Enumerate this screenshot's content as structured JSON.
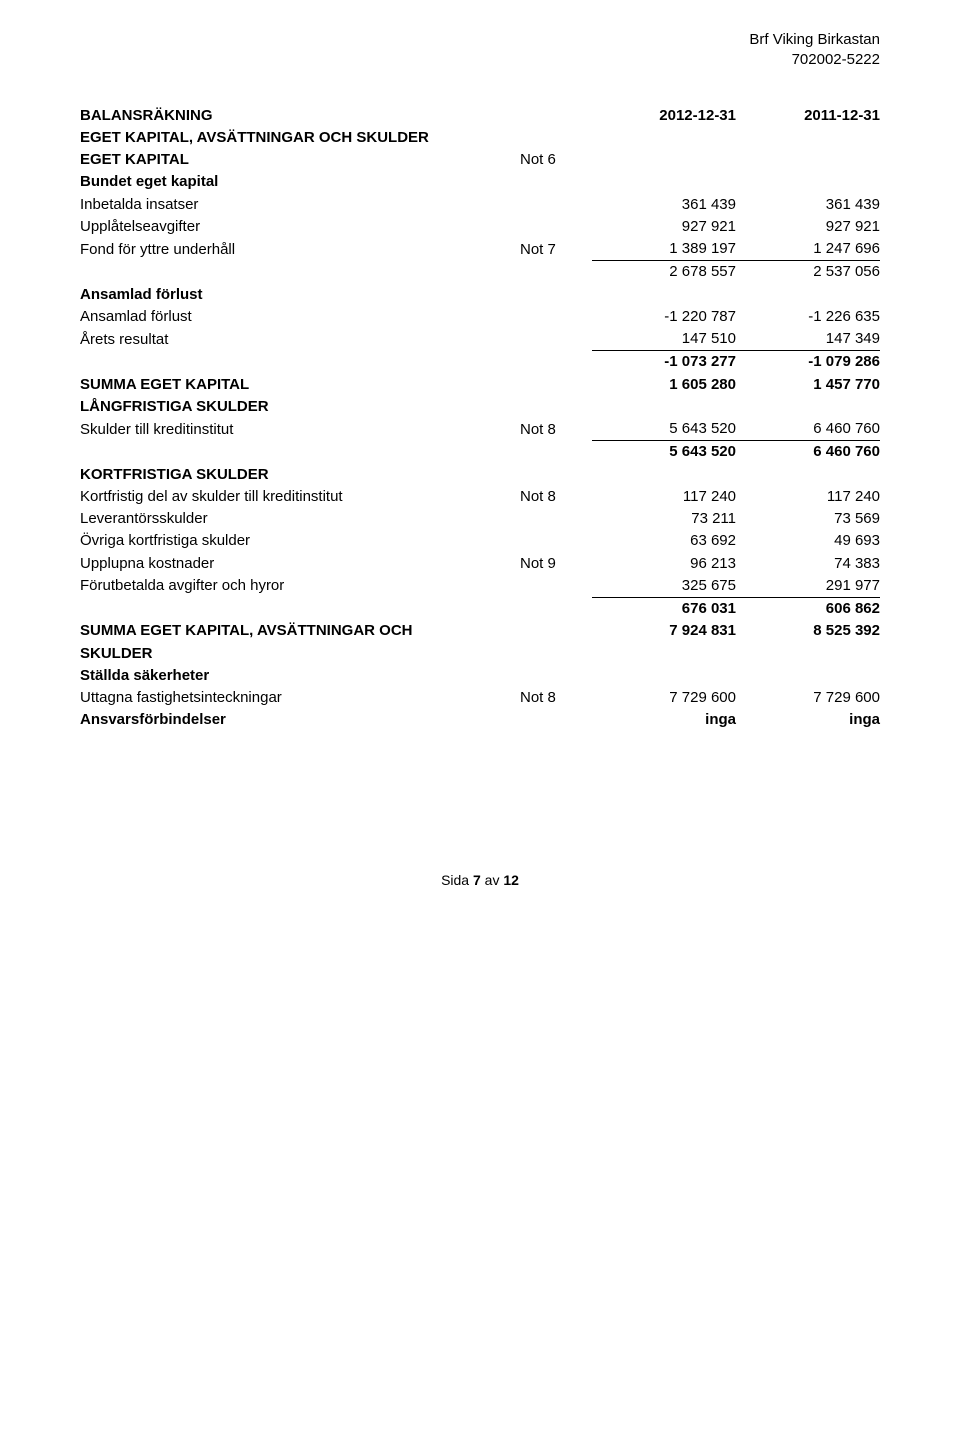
{
  "header": {
    "company": "Brf Viking Birkastan",
    "orgnr": "702002-5222"
  },
  "title": "BALANSRÄKNING",
  "col1_header": "2012-12-31",
  "col2_header": "2011-12-31",
  "sections": {
    "main_heading": "EGET KAPITAL, AVSÄTTNINGAR OCH SKULDER",
    "eget_kapital": {
      "heading": "EGET KAPITAL",
      "note": "Not 6",
      "sub1": "Bundet eget kapital",
      "rows": [
        {
          "label": "Inbetalda insatser",
          "note": "",
          "c1": "361 439",
          "c2": "361 439"
        },
        {
          "label": "Upplåtelseavgifter",
          "note": "",
          "c1": "927 921",
          "c2": "927 921"
        },
        {
          "label": "Fond för yttre underhåll",
          "note": "Not 7",
          "c1": "1 389 197",
          "c2": "1 247 696",
          "u": true
        }
      ],
      "subtotal": {
        "c1": "2 678 557",
        "c2": "2 537 056"
      }
    },
    "ansamlad": {
      "heading": "Ansamlad förlust",
      "rows": [
        {
          "label": "Ansamlad förlust",
          "c1": "-1 220 787",
          "c2": "-1 226 635"
        },
        {
          "label": "Årets resultat",
          "c1": "147 510",
          "c2": "147 349",
          "u": true
        }
      ],
      "subtotal": {
        "c1": "-1 073 277",
        "c2": "-1 079 286"
      }
    },
    "summa_ek": {
      "label": "SUMMA EGET KAPITAL",
      "c1": "1 605 280",
      "c2": "1 457 770"
    },
    "langfristiga": {
      "heading": "LÅNGFRISTIGA SKULDER",
      "rows": [
        {
          "label": "Skulder till kreditinstitut",
          "note": "Not 8",
          "c1": "5 643 520",
          "c2": "6 460 760",
          "u": true
        }
      ],
      "subtotal": {
        "c1": "5 643 520",
        "c2": "6 460 760"
      }
    },
    "kortfristiga": {
      "heading": "KORTFRISTIGA SKULDER",
      "rows": [
        {
          "label": "Kortfristig del av skulder till kreditinstitut",
          "note": "Not 8",
          "c1": "117 240",
          "c2": "117 240"
        },
        {
          "label": "Leverantörsskulder",
          "note": "",
          "c1": "73 211",
          "c2": "73 569"
        },
        {
          "label": "Övriga kortfristiga skulder",
          "note": "",
          "c1": "63 692",
          "c2": "49 693"
        },
        {
          "label": "Upplupna kostnader",
          "note": "Not 9",
          "c1": "96 213",
          "c2": "74 383"
        },
        {
          "label": "Förutbetalda avgifter och hyror",
          "note": "",
          "c1": "325 675",
          "c2": "291 977",
          "u": true
        }
      ],
      "subtotal": {
        "c1": "676 031",
        "c2": "606 862"
      }
    },
    "summa_total": {
      "label1": "SUMMA EGET KAPITAL, AVSÄTTNINGAR OCH",
      "label2": "SKULDER",
      "c1": "7 924 831",
      "c2": "8 525 392"
    },
    "stallda": {
      "heading": "Ställda säkerheter",
      "rows": [
        {
          "label": "Uttagna fastighetsinteckningar",
          "note": "Not 8",
          "c1": "7 729 600",
          "c2": "7 729 600"
        }
      ],
      "ansvars": {
        "label": "Ansvarsförbindelser",
        "c1": "inga",
        "c2": "inga"
      }
    }
  },
  "footer": {
    "pre": "Sida ",
    "page": "7",
    "mid": " av ",
    "total": "12"
  }
}
